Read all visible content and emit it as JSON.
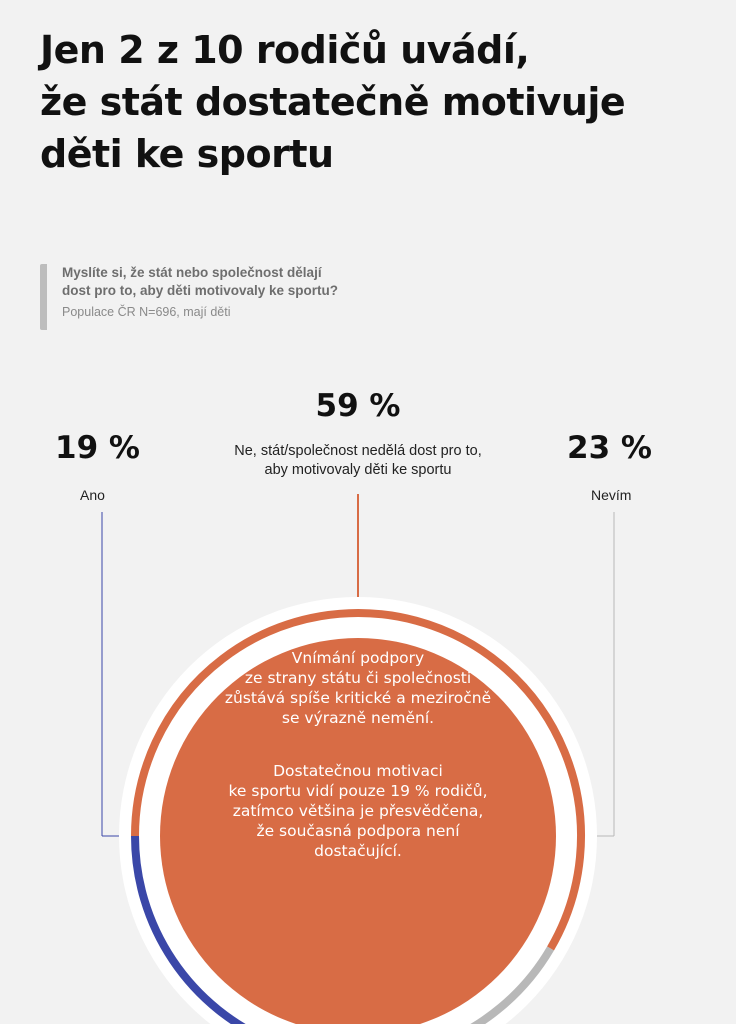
{
  "title_lines": [
    "Jen 2 z 10 rodičů uvádí,",
    "že stát dostatečně motivuje",
    "děti ke sportu"
  ],
  "question_lines": [
    "Myslíte si, že stát nebo společnost dělají",
    "dost pro to, aby děti motivovaly ke sportu?"
  ],
  "population": "Populace ČR N=696, mají děti",
  "center_paragraph_1": [
    "Vnímání podpory",
    "ze strany státu či společnosti",
    "zůstává spíše kritické a meziročně",
    "se výrazně nemění."
  ],
  "center_paragraph_2": [
    "Dostatečnou motivaci",
    "ke sportu vidí pouze 19 % rodičů,",
    "zatímco většina je přesvědčena,",
    "že současná podpora není",
    "dostačující."
  ],
  "colors": {
    "ano": "#3a47a8",
    "ne": "#d86c45",
    "nevim": "#b8b8b8",
    "background": "#f2f2f2"
  },
  "chart_data": {
    "type": "pie",
    "categories": [
      "Ano",
      "Ne, stát/společnost nedělá dost pro to, aby motivovaly děti ke sportu",
      "Nevím"
    ],
    "values": [
      19,
      59,
      23
    ],
    "value_labels": [
      "19 %",
      "59 %",
      "23 %"
    ],
    "category_lines": [
      [
        "Ano"
      ],
      [
        "Ne, stát/společnost nedělá dost pro to,",
        "aby motivovaly děti ke sportu"
      ],
      [
        "Nevím"
      ]
    ]
  }
}
